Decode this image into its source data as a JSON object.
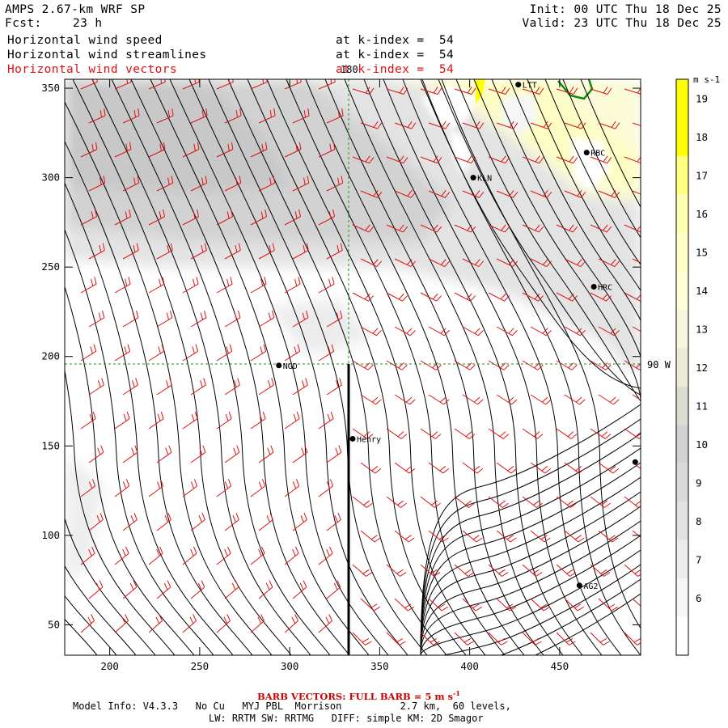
{
  "header": {
    "model": "AMPS 2.67-km WRF SP",
    "fcst_label": "Fcst:",
    "fcst_value": "23 h",
    "init": "Init: 00 UTC Thu 18 Dec 25",
    "valid": "Valid: 23 UTC Thu 18 Dec 25",
    "fields": [
      {
        "name": "Horizontal wind speed",
        "level": "at k-index =  54",
        "color": "#000000"
      },
      {
        "name": "Horizontal wind streamlines",
        "level": "at k-index =  54",
        "color": "#000000"
      },
      {
        "name": "Horizontal wind vectors",
        "level": "at k-index =  54",
        "color": "#dd1111"
      }
    ]
  },
  "map": {
    "x_ticks": [
      "200",
      "250",
      "300",
      "350",
      "400",
      "450"
    ],
    "y_ticks": [
      "350",
      "300",
      "250",
      "200",
      "150",
      "100",
      "50"
    ],
    "x_range": [
      175,
      495
    ],
    "y_range": [
      33,
      355
    ],
    "grid_label_top": "180",
    "grid_label_right": "90 W",
    "stations": [
      {
        "id": "NGD",
        "x": 294,
        "y": 195
      },
      {
        "id": "Henry",
        "x": 335,
        "y": 154
      },
      {
        "id": "KLN",
        "x": 402,
        "y": 300
      },
      {
        "id": "LTT",
        "x": 427,
        "y": 352
      },
      {
        "id": "RBC",
        "x": 465,
        "y": 314
      },
      {
        "id": "HRC",
        "x": 469,
        "y": 239
      },
      {
        "id": "AG2",
        "x": 461,
        "y": 72
      },
      {
        "id": "",
        "x": 492,
        "y": 141
      }
    ]
  },
  "colorbar": {
    "units": "m s-1",
    "labels": [
      "19",
      "18",
      "17",
      "16",
      "15",
      "14",
      "13",
      "12",
      "11",
      "10",
      "9",
      "8",
      "7",
      "6"
    ],
    "colors": [
      "#ffff00",
      "#ffff00",
      "#ffff80",
      "#ffffb0",
      "#ffffc6",
      "#ffffd8",
      "#f6f6dc",
      "#ebebd8",
      "#dcdcd0",
      "#d2d2d2",
      "#d9d9d9",
      "#e2e2e2",
      "#ececec",
      "#f6f6f6",
      "#ffffff"
    ]
  },
  "footer": {
    "barb": "BARB VECTORS: FULL BARB = 5 m s",
    "barb_sup": "-1",
    "line1": "Model Info: V4.3.3   No Cu   MYJ PBL  Morrison          2.7 km,  60 levels,",
    "line2": "LW: RRTM SW: RRTMG   DIFF: simple KM: 2D Smagor"
  }
}
